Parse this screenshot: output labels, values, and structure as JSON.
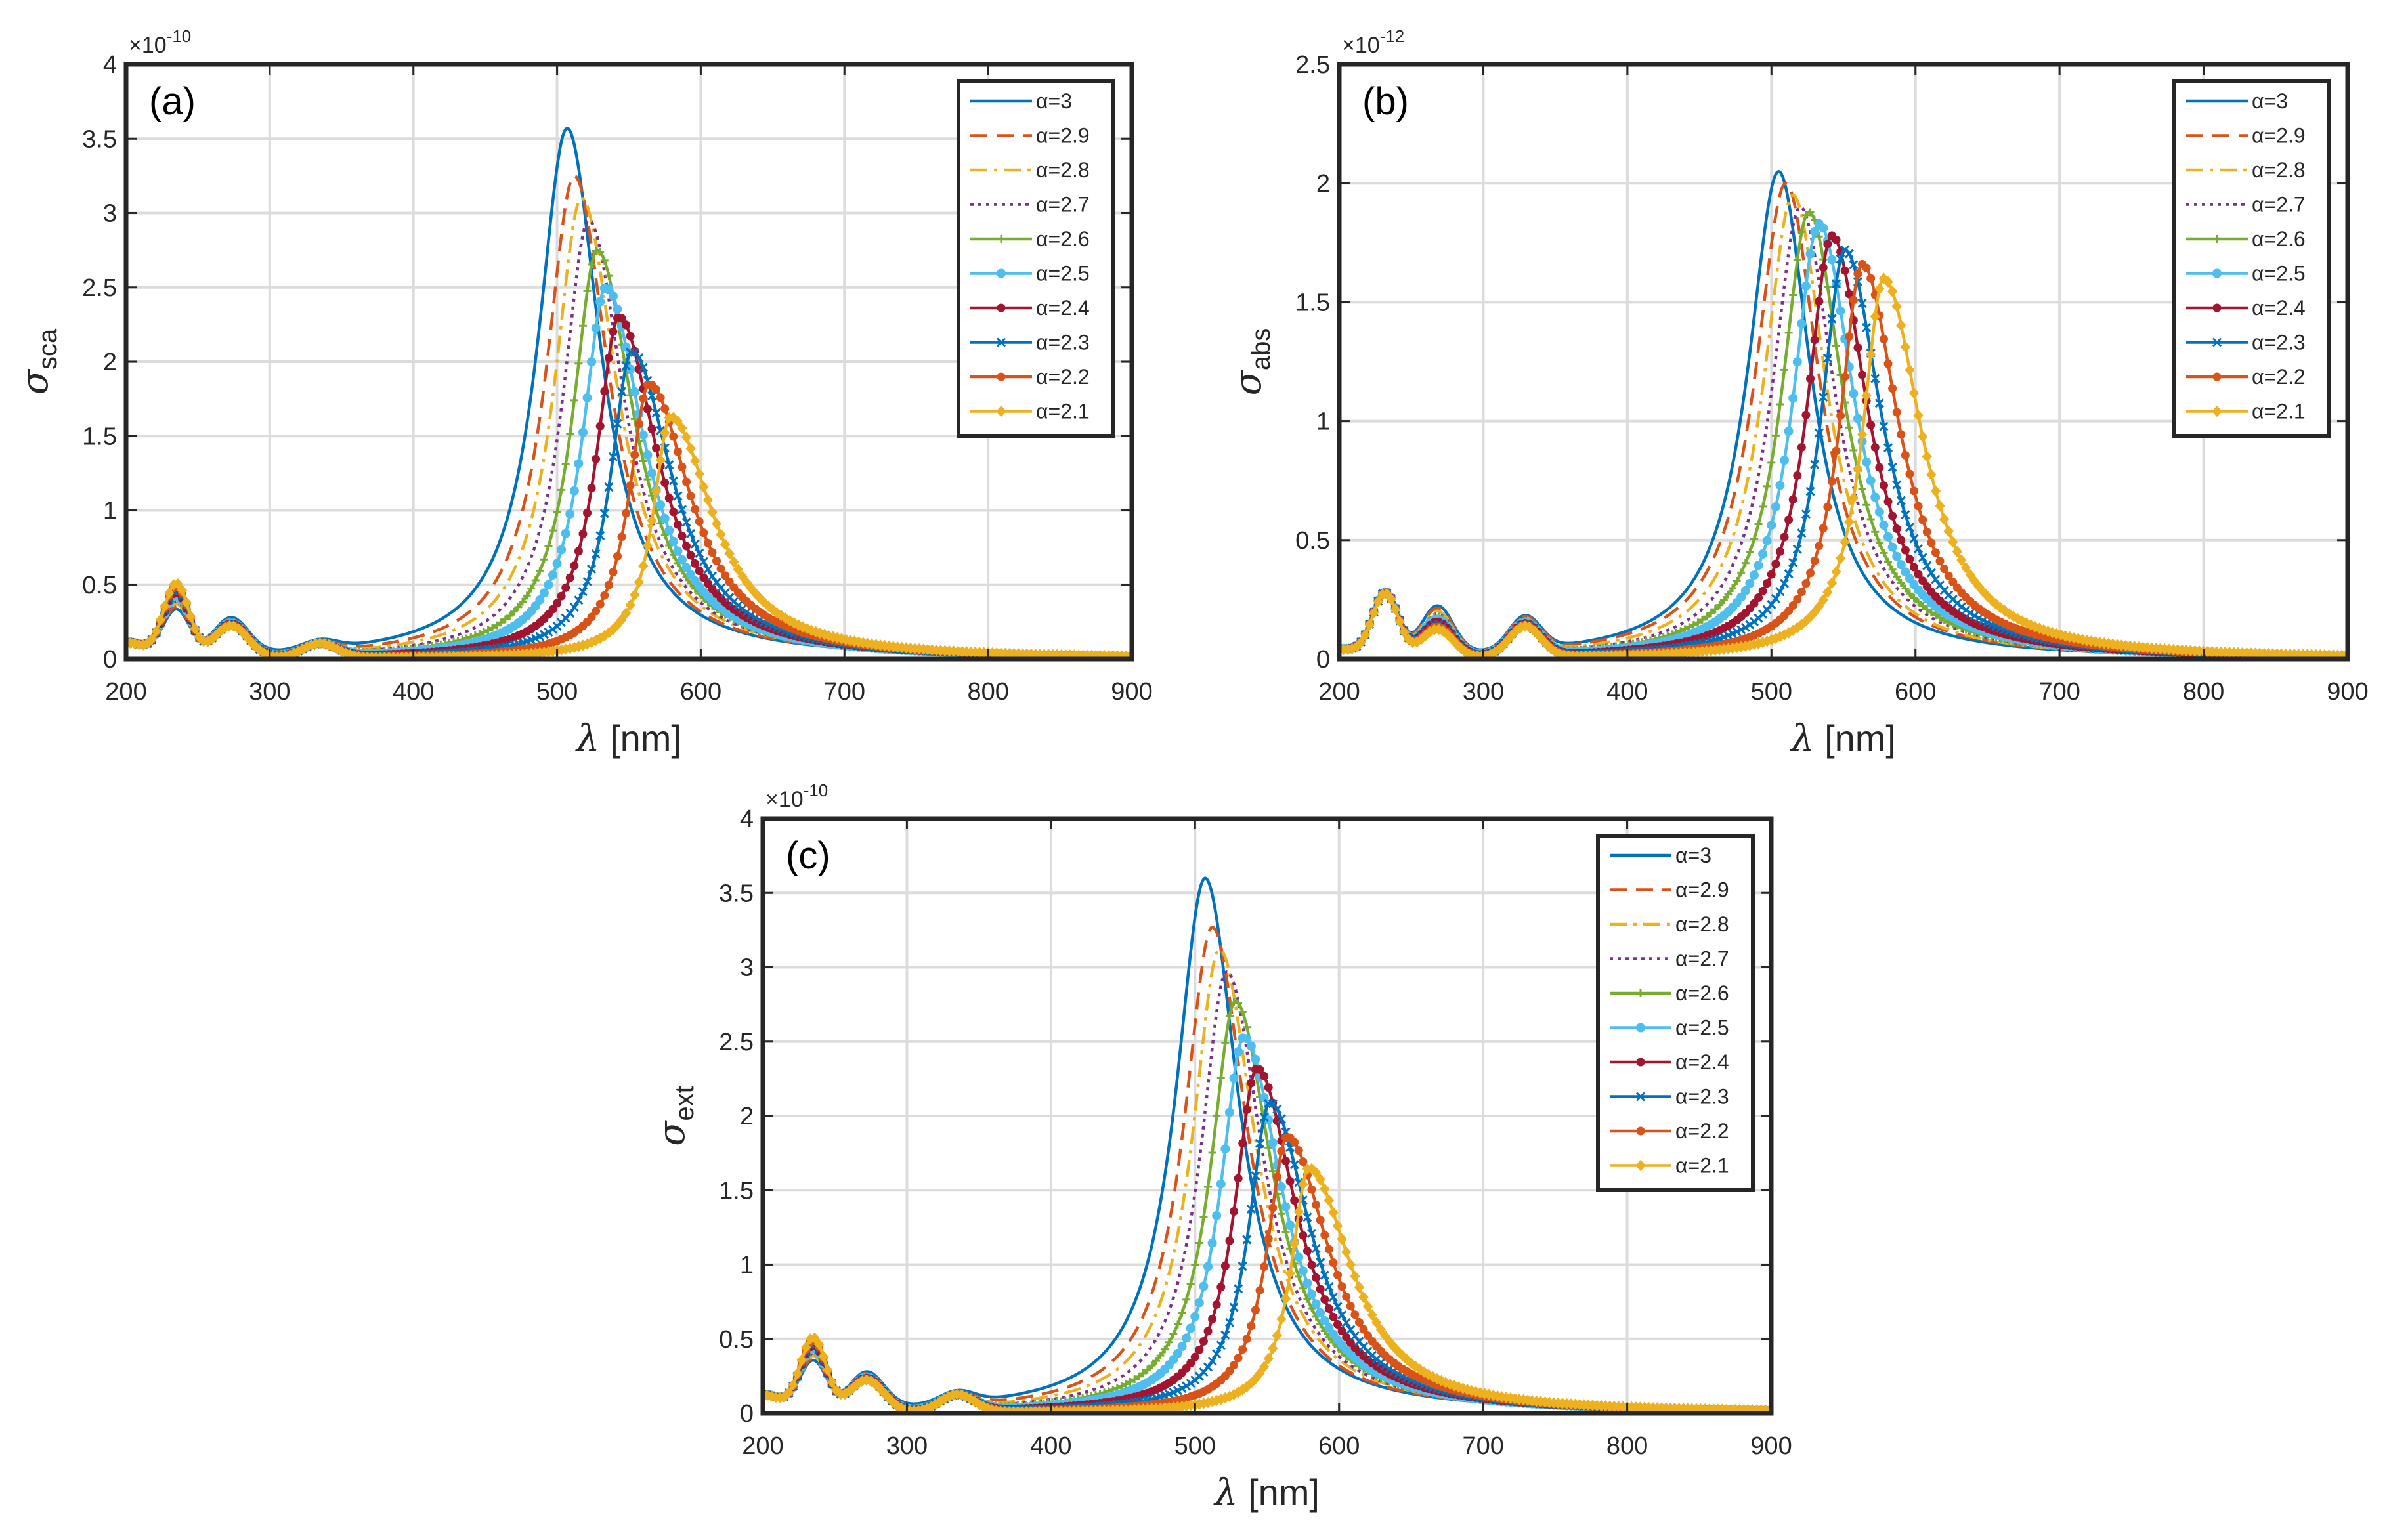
{
  "figure": {
    "panels": [
      "(a)",
      "(b)",
      "(c)"
    ]
  },
  "series_style": [
    {
      "name": "α=3",
      "color": "#0072BD",
      "dash": "solid",
      "marker": "none"
    },
    {
      "name": "α=2.9",
      "color": "#D95319",
      "dash": "dashed",
      "marker": "none"
    },
    {
      "name": "α=2.8",
      "color": "#EDB120",
      "dash": "dashdot",
      "marker": "none"
    },
    {
      "name": "α=2.7",
      "color": "#7E2F8E",
      "dash": "dotted",
      "marker": "none"
    },
    {
      "name": "α=2.6",
      "color": "#77AC30",
      "dash": "solid",
      "marker": "plus"
    },
    {
      "name": "α=2.5",
      "color": "#4DBEEE",
      "dash": "solid",
      "marker": "circle"
    },
    {
      "name": "α=2.4",
      "color": "#A2142F",
      "dash": "solid",
      "marker": "dot"
    },
    {
      "name": "α=2.3",
      "color": "#0072BD",
      "dash": "solid",
      "marker": "x"
    },
    {
      "name": "α=2.2",
      "color": "#D95319",
      "dash": "solid",
      "marker": "dot"
    },
    {
      "name": "α=2.1",
      "color": "#EDB120",
      "dash": "solid",
      "marker": "diamond"
    }
  ],
  "chart_data": [
    {
      "type": "line",
      "panel_label": "(a)",
      "ylabel_symbol": "σ",
      "ylabel_sub": "sca",
      "xlabel_symbol": "λ",
      "xlabel_unit": "[nm]",
      "multiplier_base": "×10",
      "multiplier_exp": "-10",
      "xlim": [
        200,
        900
      ],
      "ylim": [
        0,
        4
      ],
      "xticks": [
        200,
        300,
        400,
        500,
        600,
        700,
        800,
        900
      ],
      "yticks": [
        0,
        0.5,
        1,
        1.5,
        2,
        2.5,
        3,
        3.5,
        4
      ],
      "ytick_labels": [
        "0",
        "0.5",
        "1",
        "1.5",
        "2",
        "2.5",
        "3",
        "3.5",
        "4"
      ],
      "grid": true,
      "legend": "top-right",
      "uv_peaks": [
        {
          "center": 235,
          "amp_start": 0.3,
          "amp_end": 0.5,
          "width": 9
        },
        {
          "center": 273,
          "amp_start": 0.24,
          "amp_end": 0.22,
          "width": 12
        },
        {
          "center": 335,
          "amp_start": 0.06,
          "amp_end": 0.1,
          "width": 12
        }
      ],
      "baseline_200": 0.18,
      "series": [
        {
          "name": "α=3",
          "peak_x": 507,
          "peak_y": 3.57,
          "width_left": 25,
          "width_right": 28
        },
        {
          "name": "α=2.9",
          "peak_x": 512,
          "peak_y": 3.25,
          "width_left": 24,
          "width_right": 29
        },
        {
          "name": "α=2.8",
          "peak_x": 517,
          "peak_y": 3.1,
          "width_left": 23,
          "width_right": 30
        },
        {
          "name": "α=2.7",
          "peak_x": 522,
          "peak_y": 2.95,
          "width_left": 22,
          "width_right": 30
        },
        {
          "name": "α=2.6",
          "peak_x": 528,
          "peak_y": 2.75,
          "width_left": 21,
          "width_right": 31
        },
        {
          "name": "α=2.5",
          "peak_x": 534,
          "peak_y": 2.5,
          "width_left": 20,
          "width_right": 32
        },
        {
          "name": "α=2.4",
          "peak_x": 543,
          "peak_y": 2.3,
          "width_left": 19,
          "width_right": 33
        },
        {
          "name": "α=2.3",
          "peak_x": 552,
          "peak_y": 2.07,
          "width_left": 18,
          "width_right": 34
        },
        {
          "name": "α=2.2",
          "peak_x": 564,
          "peak_y": 1.85,
          "width_left": 17,
          "width_right": 35
        },
        {
          "name": "α=2.1",
          "peak_x": 579,
          "peak_y": 1.63,
          "width_left": 15,
          "width_right": 36
        }
      ]
    },
    {
      "type": "line",
      "panel_label": "(b)",
      "ylabel_symbol": "σ",
      "ylabel_sub": "abs",
      "xlabel_symbol": "λ",
      "xlabel_unit": "[nm]",
      "multiplier_base": "×10",
      "multiplier_exp": "-12",
      "xlim": [
        200,
        900
      ],
      "ylim": [
        0,
        2.5
      ],
      "xticks": [
        200,
        300,
        400,
        500,
        600,
        700,
        800,
        900
      ],
      "yticks": [
        0,
        0.5,
        1,
        1.5,
        2,
        2.5
      ],
      "ytick_labels": [
        "0",
        "0.5",
        "1",
        "1.5",
        "2",
        "2.5"
      ],
      "grid": true,
      "legend": "top-right",
      "uv_peaks": [
        {
          "center": 232,
          "amp_start": 0.27,
          "amp_end": 0.27,
          "width": 9
        },
        {
          "center": 268,
          "amp_start": 0.2,
          "amp_end": 0.12,
          "width": 11
        },
        {
          "center": 329,
          "amp_start": 0.14,
          "amp_end": 0.13,
          "width": 11
        }
      ],
      "baseline_200": 0.06,
      "series": [
        {
          "name": "α=3",
          "peak_x": 505,
          "peak_y": 2.05,
          "width_left": 26,
          "width_right": 27
        },
        {
          "name": "α=2.9",
          "peak_x": 510,
          "peak_y": 2.0,
          "width_left": 26,
          "width_right": 28
        },
        {
          "name": "α=2.8",
          "peak_x": 515,
          "peak_y": 1.95,
          "width_left": 25,
          "width_right": 28
        },
        {
          "name": "α=2.7",
          "peak_x": 520,
          "peak_y": 1.9,
          "width_left": 24,
          "width_right": 29
        },
        {
          "name": "α=2.6",
          "peak_x": 526,
          "peak_y": 1.88,
          "width_left": 23,
          "width_right": 29
        },
        {
          "name": "α=2.5",
          "peak_x": 533,
          "peak_y": 1.83,
          "width_left": 22,
          "width_right": 30
        },
        {
          "name": "α=2.4",
          "peak_x": 542,
          "peak_y": 1.78,
          "width_left": 21,
          "width_right": 30
        },
        {
          "name": "α=2.3",
          "peak_x": 551,
          "peak_y": 1.72,
          "width_left": 20,
          "width_right": 31
        },
        {
          "name": "α=2.2",
          "peak_x": 563,
          "peak_y": 1.66,
          "width_left": 19,
          "width_right": 31
        },
        {
          "name": "α=2.1",
          "peak_x": 578,
          "peak_y": 1.6,
          "width_left": 18,
          "width_right": 32
        }
      ]
    },
    {
      "type": "line",
      "panel_label": "(c)",
      "ylabel_symbol": "σ",
      "ylabel_sub": "ext",
      "xlabel_symbol": "λ",
      "xlabel_unit": "[nm]",
      "multiplier_base": "×10",
      "multiplier_exp": "-10",
      "xlim": [
        200,
        900
      ],
      "ylim": [
        0,
        4
      ],
      "xticks": [
        200,
        300,
        400,
        500,
        600,
        700,
        800,
        900
      ],
      "yticks": [
        0,
        0.5,
        1,
        1.5,
        2,
        2.5,
        3,
        3.5,
        4
      ],
      "ytick_labels": [
        "0",
        "0.5",
        "1",
        "1.5",
        "2",
        "2.5",
        "3",
        "3.5",
        "4"
      ],
      "grid": true,
      "legend": "top-right",
      "uv_peaks": [
        {
          "center": 235,
          "amp_start": 0.32,
          "amp_end": 0.5,
          "width": 9
        },
        {
          "center": 272,
          "amp_start": 0.24,
          "amp_end": 0.22,
          "width": 12
        },
        {
          "center": 335,
          "amp_start": 0.08,
          "amp_end": 0.12,
          "width": 12
        }
      ],
      "baseline_200": 0.2,
      "series": [
        {
          "name": "α=3",
          "peak_x": 507,
          "peak_y": 3.6,
          "width_left": 25,
          "width_right": 28
        },
        {
          "name": "α=2.9",
          "peak_x": 512,
          "peak_y": 3.27,
          "width_left": 24,
          "width_right": 29
        },
        {
          "name": "α=2.8",
          "peak_x": 517,
          "peak_y": 3.12,
          "width_left": 23,
          "width_right": 30
        },
        {
          "name": "α=2.7",
          "peak_x": 522,
          "peak_y": 2.97,
          "width_left": 22,
          "width_right": 30
        },
        {
          "name": "α=2.6",
          "peak_x": 528,
          "peak_y": 2.77,
          "width_left": 21,
          "width_right": 31
        },
        {
          "name": "α=2.5",
          "peak_x": 534,
          "peak_y": 2.53,
          "width_left": 20,
          "width_right": 32
        },
        {
          "name": "α=2.4",
          "peak_x": 543,
          "peak_y": 2.32,
          "width_left": 19,
          "width_right": 33
        },
        {
          "name": "α=2.3",
          "peak_x": 552,
          "peak_y": 2.09,
          "width_left": 18,
          "width_right": 34
        },
        {
          "name": "α=2.2",
          "peak_x": 564,
          "peak_y": 1.86,
          "width_left": 17,
          "width_right": 35
        },
        {
          "name": "α=2.1",
          "peak_x": 579,
          "peak_y": 1.65,
          "width_left": 15,
          "width_right": 36
        }
      ]
    }
  ]
}
